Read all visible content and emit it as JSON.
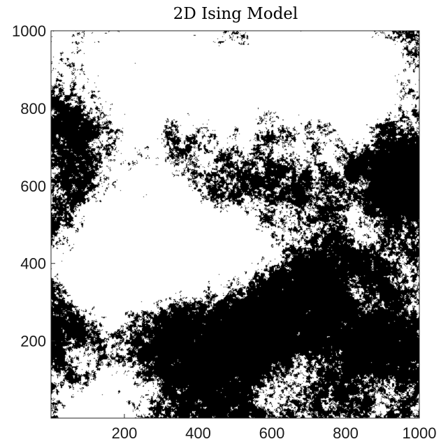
{
  "chart_data": {
    "type": "heatmap",
    "title": "2D Ising Model",
    "xlabel": "",
    "ylabel": "",
    "xlim": [
      1,
      1000
    ],
    "ylim": [
      1,
      1000
    ],
    "x_ticks": [
      200,
      400,
      600,
      800,
      1000
    ],
    "y_ticks": [
      200,
      400,
      600,
      800,
      1000
    ],
    "x_tick_labels": [
      "200",
      "400",
      "600",
      "800",
      "1000"
    ],
    "y_tick_labels": [
      "200",
      "400",
      "600",
      "800",
      "1000"
    ],
    "grid": false,
    "colormap": {
      "spin_up": "#ffffff",
      "spin_down": "#000000"
    },
    "lattice_size": [
      1000,
      1000
    ],
    "values": "binary spin lattice (+1 white / -1 black), large-scale clusters",
    "clusters": [
      {
        "x": 160,
        "y": 920,
        "radius": 150,
        "spin": 1
      },
      {
        "x": 360,
        "y": 850,
        "radius": 150,
        "spin": 1
      },
      {
        "x": 550,
        "y": 850,
        "radius": 150,
        "spin": 1
      },
      {
        "x": 760,
        "y": 930,
        "radius": 140,
        "spin": 1
      },
      {
        "x": 880,
        "y": 800,
        "radius": 120,
        "spin": 1
      },
      {
        "x": 240,
        "y": 560,
        "radius": 120,
        "spin": 1
      },
      {
        "x": 210,
        "y": 420,
        "radius": 140,
        "spin": 1
      },
      {
        "x": 320,
        "y": 370,
        "radius": 120,
        "spin": 1
      },
      {
        "x": 440,
        "y": 430,
        "radius": 110,
        "spin": 1
      },
      {
        "x": 530,
        "y": 470,
        "radius": 80,
        "spin": 1
      },
      {
        "x": 700,
        "y": 470,
        "radius": 110,
        "spin": 1
      },
      {
        "x": 180,
        "y": 90,
        "radius": 110,
        "spin": 1
      },
      {
        "x": 60,
        "y": 30,
        "radius": 70,
        "spin": 1
      },
      {
        "x": 650,
        "y": 110,
        "radius": 80,
        "spin": 1
      },
      {
        "x": 930,
        "y": 420,
        "radius": 90,
        "spin": 1
      },
      {
        "x": 120,
        "y": 350,
        "radius": 60,
        "spin": 1
      },
      {
        "x": 80,
        "y": 700,
        "radius": 140,
        "spin": -1
      },
      {
        "x": 620,
        "y": 580,
        "radius": 140,
        "spin": -1
      },
      {
        "x": 400,
        "y": 660,
        "radius": 90,
        "spin": -1
      },
      {
        "x": 450,
        "y": 200,
        "radius": 150,
        "spin": -1
      },
      {
        "x": 820,
        "y": 280,
        "radius": 160,
        "spin": -1
      },
      {
        "x": 60,
        "y": 200,
        "radius": 110,
        "spin": -1
      },
      {
        "x": 460,
        "y": 990,
        "radius": 80,
        "spin": -1
      },
      {
        "x": 940,
        "y": 650,
        "radius": 110,
        "spin": -1
      },
      {
        "x": 330,
        "y": 230,
        "radius": 90,
        "spin": -1
      },
      {
        "x": 580,
        "y": 300,
        "radius": 100,
        "spin": -1
      }
    ]
  }
}
